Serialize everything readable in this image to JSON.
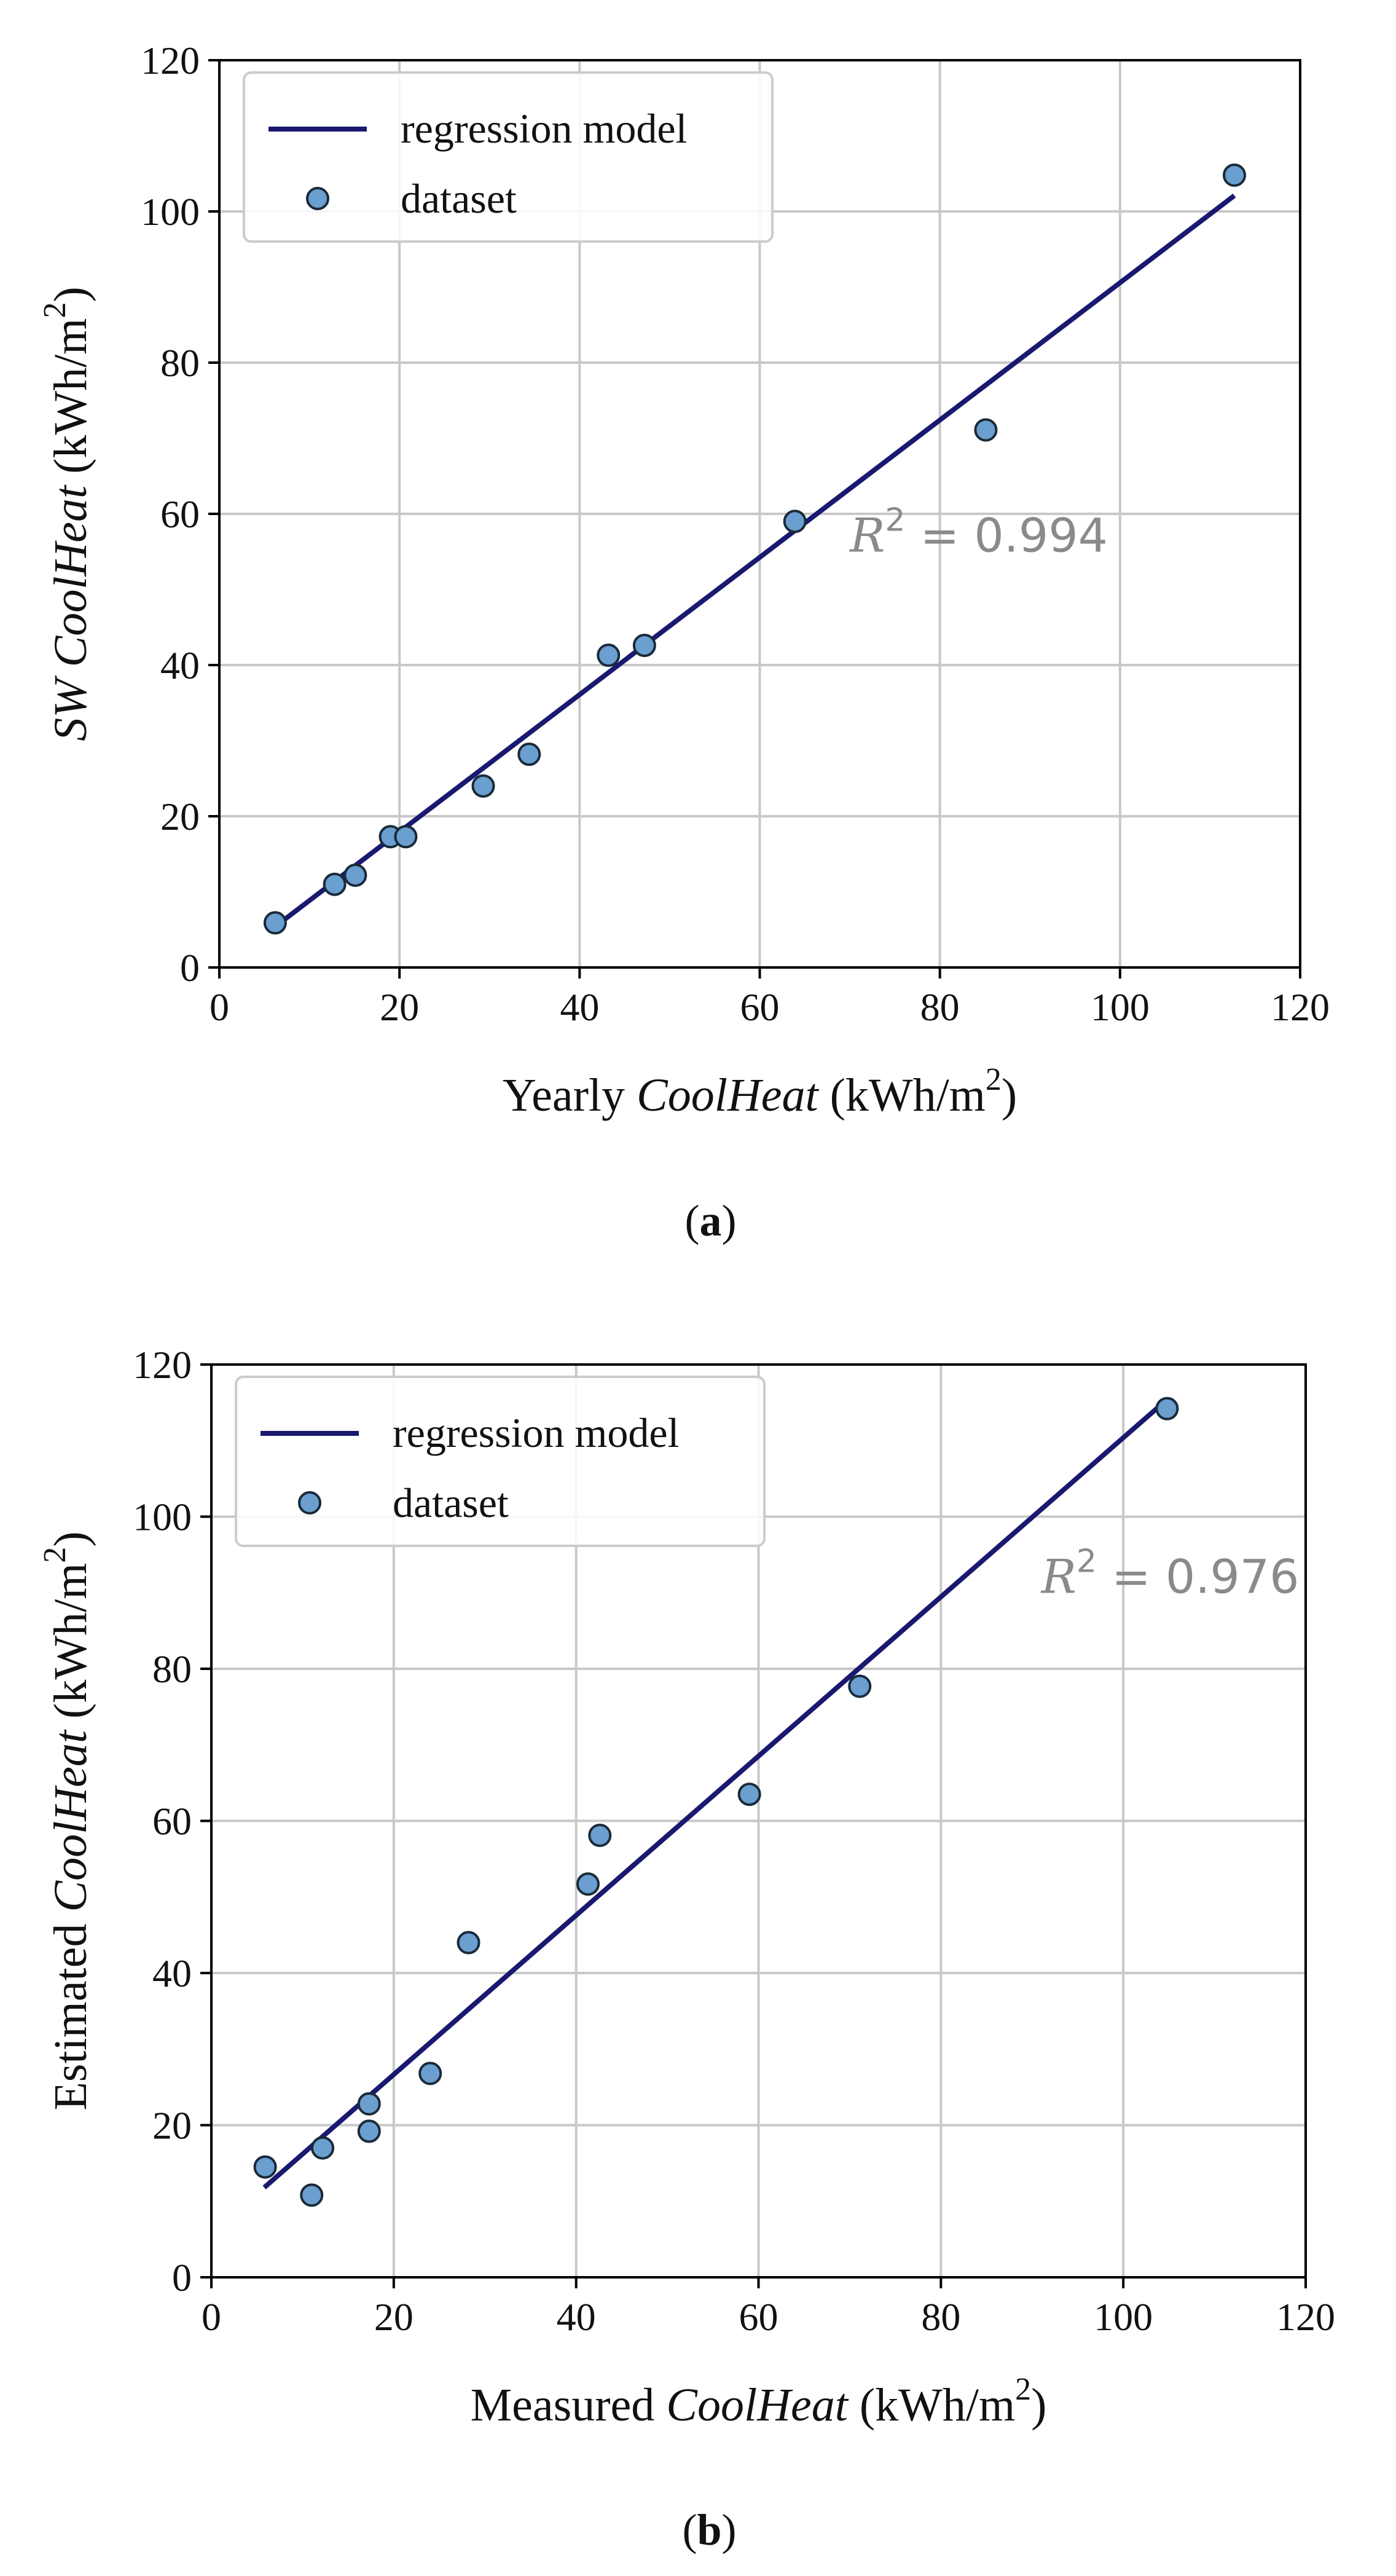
{
  "chart_data": [
    {
      "type": "scatter",
      "panel_label": "(a)",
      "xlabel": {
        "pre": "Yearly ",
        "italic": "CoolHeat",
        "unit": " (kWh/m",
        "sup": "2",
        "close": ")"
      },
      "ylabel": {
        "pre": "",
        "italic": "SW CoolHeat",
        "unit": " (kWh/m",
        "sup": "2",
        "close": ")"
      },
      "xlim": [
        0,
        120
      ],
      "ylim": [
        0,
        120
      ],
      "xticks": [
        0,
        20,
        40,
        60,
        80,
        100,
        120
      ],
      "yticks": [
        0,
        20,
        40,
        60,
        80,
        100,
        120
      ],
      "grid": true,
      "legend": {
        "location": "top-left",
        "line_label": "regression model",
        "points_label": "dataset"
      },
      "annotation": {
        "symbol": "R",
        "sup": "2",
        "text": " = 0.994",
        "x": 70,
        "y": 55
      },
      "regression": {
        "x": [
          6.2,
          112.7
        ],
        "y": [
          5.4,
          102.1
        ]
      },
      "series": [
        {
          "name": "dataset",
          "x": [
            6.2,
            12.8,
            15.1,
            19.0,
            20.7,
            29.3,
            34.4,
            43.2,
            47.2,
            63.9,
            85.1,
            112.7
          ],
          "y": [
            5.9,
            11.0,
            12.2,
            17.3,
            17.3,
            24.0,
            28.2,
            41.3,
            42.6,
            59.0,
            71.1,
            104.8
          ]
        }
      ],
      "colors": {
        "line": "#191970",
        "marker_fill": "#6a9fcf",
        "marker_edge": "#1a2a3a",
        "grid": "#c8c8c8",
        "annotation": "#8a8a8a"
      }
    },
    {
      "type": "scatter",
      "panel_label": "(b)",
      "xlabel": {
        "pre": "Measured ",
        "italic": "CoolHeat",
        "unit": " (kWh/m",
        "sup": "2",
        "close": ")"
      },
      "ylabel": {
        "pre": "Estimated ",
        "italic": "CoolHeat",
        "unit": " (kWh/m",
        "sup": "2",
        "close": ")"
      },
      "xlim": [
        0,
        120
      ],
      "ylim": [
        0,
        120
      ],
      "xticks": [
        0,
        20,
        40,
        60,
        80,
        100,
        120
      ],
      "yticks": [
        0,
        20,
        40,
        60,
        80,
        100,
        120
      ],
      "grid": true,
      "legend": {
        "location": "top-left",
        "line_label": "regression model",
        "points_label": "dataset"
      },
      "annotation": {
        "symbol": "R",
        "sup": "2",
        "text": " = 0.976",
        "x": 91,
        "y": 90
      },
      "regression": {
        "x": [
          5.8,
          104.8
        ],
        "y": [
          11.8,
          115.4
        ]
      },
      "series": [
        {
          "name": "dataset",
          "x": [
            5.9,
            11.0,
            12.2,
            17.3,
            17.3,
            24.0,
            28.2,
            41.3,
            42.6,
            59.0,
            71.1,
            104.8
          ],
          "y": [
            14.5,
            10.8,
            17.0,
            19.2,
            22.8,
            26.8,
            44.0,
            51.7,
            58.1,
            63.5,
            77.7,
            114.2
          ]
        }
      ],
      "colors": {
        "line": "#191970",
        "marker_fill": "#6a9fcf",
        "marker_edge": "#1a2a3a",
        "grid": "#c8c8c8",
        "annotation": "#8a8a8a"
      }
    }
  ]
}
